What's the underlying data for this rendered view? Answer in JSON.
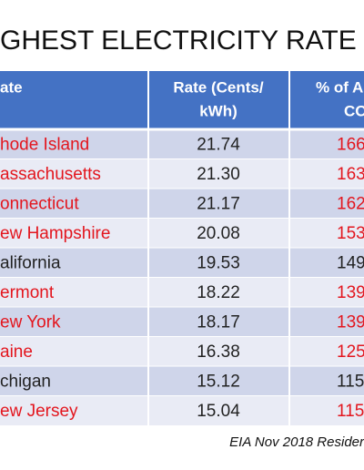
{
  "title": "GHEST ELECTRICITY RATE",
  "table": {
    "header": [
      [
        "ate"
      ],
      [
        "Rate (Cents/",
        "kWh)"
      ],
      [
        "% of A",
        "CO"
      ]
    ],
    "rows": [
      [
        "hode Island",
        "21.74",
        "166"
      ],
      [
        "assachusetts",
        "21.30",
        "163"
      ],
      [
        "onnecticut",
        "21.17",
        "162"
      ],
      [
        "ew Hampshire",
        "20.08",
        "153"
      ],
      [
        "alifornia",
        "19.53",
        "149"
      ],
      [
        "ermont",
        "18.22",
        "139"
      ],
      [
        "ew York",
        "18.17",
        "139"
      ],
      [
        "aine",
        "16.38",
        "125"
      ],
      [
        "chigan",
        "15.12",
        "115"
      ],
      [
        "ew Jersey",
        "15.04",
        "115"
      ]
    ],
    "row_colors": [
      "#e3161e",
      "#e3161e",
      "#e3161e",
      "#e3161e",
      "#222222",
      "#e3161e",
      "#e3161e",
      "#e3161e",
      "#222222",
      "#e3161e"
    ]
  },
  "source": "EIA Nov 2018 Resider"
}
